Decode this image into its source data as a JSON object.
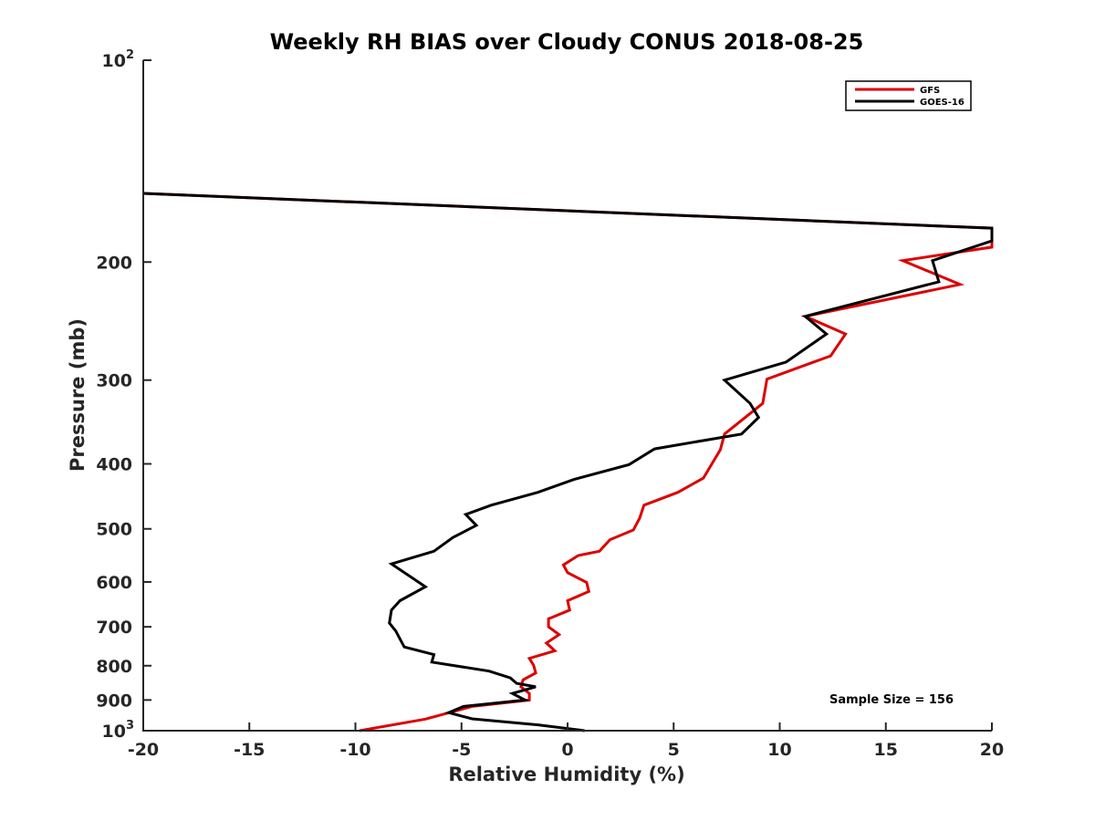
{
  "chart_data": {
    "type": "line",
    "title": "Weekly RH BIAS over Cloudy CONUS 2018-08-25",
    "xlabel": "Relative Humidity (%)",
    "ylabel": "Pressure (mb)",
    "xlim": [
      -20,
      20
    ],
    "ylim": [
      100,
      1000
    ],
    "y_scale": "log",
    "y_reversed": true,
    "x_ticks": [
      "-20",
      "-15",
      "-10",
      "-5",
      "0",
      "5",
      "10",
      "15",
      "20"
    ],
    "x_tick_values": [
      -20,
      -15,
      -10,
      -5,
      0,
      5,
      10,
      15,
      20
    ],
    "y_ticks": [
      {
        "value": 100,
        "base": "10",
        "exp": "2"
      },
      {
        "value": 200,
        "base": "200",
        "exp": ""
      },
      {
        "value": 300,
        "base": "300",
        "exp": ""
      },
      {
        "value": 400,
        "base": "400",
        "exp": ""
      },
      {
        "value": 500,
        "base": "500",
        "exp": ""
      },
      {
        "value": 600,
        "base": "600",
        "exp": ""
      },
      {
        "value": 700,
        "base": "700",
        "exp": ""
      },
      {
        "value": 800,
        "base": "800",
        "exp": ""
      },
      {
        "value": 900,
        "base": "900",
        "exp": ""
      },
      {
        "value": 1000,
        "base": "10",
        "exp": "3"
      }
    ],
    "grid": false,
    "legend_position": "top-right",
    "annotation": "Sample Size = 156",
    "series": [
      {
        "name": "GFS",
        "color": "#dd0000",
        "points": [
          [
            -20,
            158
          ],
          [
            20,
            178
          ],
          [
            20,
            190
          ],
          [
            15.8,
            199
          ],
          [
            18.5,
            216
          ],
          [
            11.2,
            241
          ],
          [
            13.1,
            256
          ],
          [
            12.4,
            276
          ],
          [
            9.4,
            299
          ],
          [
            9.2,
            325
          ],
          [
            7.4,
            361
          ],
          [
            7.2,
            381
          ],
          [
            6.4,
            420
          ],
          [
            5.2,
            441
          ],
          [
            3.6,
            461
          ],
          [
            3.4,
            482
          ],
          [
            3.1,
            502
          ],
          [
            2.0,
            519
          ],
          [
            1.5,
            540
          ],
          [
            0.5,
            548
          ],
          [
            -0.2,
            566
          ],
          [
            0.0,
            581
          ],
          [
            0.9,
            601
          ],
          [
            1.0,
            620
          ],
          [
            0.0,
            640
          ],
          [
            0.1,
            661
          ],
          [
            -0.9,
            681
          ],
          [
            -0.9,
            700
          ],
          [
            -0.4,
            719
          ],
          [
            -1.0,
            740
          ],
          [
            -0.6,
            760
          ],
          [
            -1.8,
            780
          ],
          [
            -1.6,
            799
          ],
          [
            -1.5,
            820
          ],
          [
            -2.1,
            840
          ],
          [
            -2.2,
            860
          ],
          [
            -1.8,
            880
          ],
          [
            -1.8,
            900
          ],
          [
            -4.5,
            920
          ],
          [
            -6.7,
            961
          ],
          [
            -9.8,
            1000
          ]
        ]
      },
      {
        "name": "GOES-16",
        "color": "#000000",
        "points": [
          [
            -20,
            158
          ],
          [
            20,
            178
          ],
          [
            20,
            186
          ],
          [
            17.2,
            199
          ],
          [
            17.5,
            214
          ],
          [
            11.2,
            241
          ],
          [
            12.2,
            256
          ],
          [
            10.3,
            282
          ],
          [
            7.4,
            300
          ],
          [
            8.6,
            325
          ],
          [
            9.0,
            341
          ],
          [
            8.2,
            361
          ],
          [
            4.1,
            380
          ],
          [
            2.9,
            401
          ],
          [
            0.3,
            422
          ],
          [
            -1.4,
            441
          ],
          [
            -3.6,
            461
          ],
          [
            -4.8,
            476
          ],
          [
            -4.3,
            494
          ],
          [
            -5.4,
            515
          ],
          [
            -6.3,
            540
          ],
          [
            -8.3,
            564
          ],
          [
            -6.7,
            610
          ],
          [
            -7.9,
            640
          ],
          [
            -8.3,
            661
          ],
          [
            -8.4,
            691
          ],
          [
            -8.1,
            710
          ],
          [
            -7.7,
            750
          ],
          [
            -6.3,
            770
          ],
          [
            -6.4,
            790
          ],
          [
            -3.7,
            815
          ],
          [
            -2.7,
            834
          ],
          [
            -2.4,
            850
          ],
          [
            -1.5,
            860
          ],
          [
            -2.6,
            880
          ],
          [
            -2.0,
            900
          ],
          [
            -4.9,
            920
          ],
          [
            -5.6,
            940
          ],
          [
            -4.5,
            960
          ],
          [
            -1.4,
            980
          ],
          [
            0.8,
            1000
          ]
        ]
      }
    ]
  }
}
